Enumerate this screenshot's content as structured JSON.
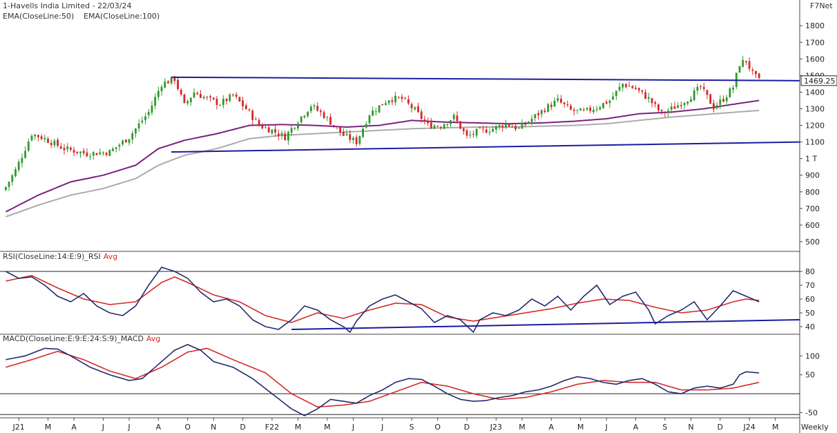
{
  "header": {
    "title": "1-Havells India Limited - 22/03/24",
    "ema50_label": "EMA(CloseLine:50)",
    "ema100_label": "EMA(CloseLine:100)",
    "brand": "F7Net",
    "period_label": "Weekly"
  },
  "colors": {
    "up": "#2e9b2e",
    "down": "#d62828",
    "ema50": "#7b1f7b",
    "ema100": "#aaaaaa",
    "trend": "#1a1aa0",
    "rsi": "#1f2a6b",
    "rsi_avg": "#d62828",
    "macd": "#1f2a6b",
    "macd_avg": "#d62828",
    "ref_line": "#222222"
  },
  "chart_data": [
    {
      "type": "candlestick",
      "name": "price",
      "y_ticks": [
        "1800",
        "1700",
        "1600",
        "1500",
        "1400",
        "1300",
        "1200",
        "1100",
        "1 T",
        "900",
        "800",
        "700",
        "600",
        "500"
      ],
      "y_tick_values": [
        1800,
        1700,
        1600,
        1500,
        1400,
        1300,
        1200,
        1100,
        1000,
        900,
        800,
        700,
        600,
        500
      ],
      "ylim": [
        450,
        1830
      ],
      "last_price_label": "1469.25",
      "last_price": 1469.25,
      "x_labels": [
        "J21",
        "M",
        "A",
        "J",
        "J",
        "A",
        "O",
        "N",
        "D",
        "F22",
        "M",
        "M",
        "J",
        "J",
        "S",
        "O",
        "D",
        "J23",
        "M",
        "A",
        "M",
        "J",
        "A",
        "S",
        "N",
        "D",
        "J24",
        "M"
      ],
      "x_label_weeks": [
        4,
        13,
        21,
        30,
        38,
        47,
        56,
        64,
        73,
        82,
        90,
        99,
        107,
        116,
        125,
        133,
        142,
        151,
        159,
        168,
        177,
        185,
        194,
        203,
        211,
        220,
        229,
        237
      ],
      "week_count": 245,
      "ohlc_keypoints": [
        [
          0,
          830
        ],
        [
          3,
          930
        ],
        [
          8,
          1150
        ],
        [
          12,
          1120
        ],
        [
          18,
          1060
        ],
        [
          25,
          1030
        ],
        [
          32,
          1040
        ],
        [
          38,
          1130
        ],
        [
          44,
          1280
        ],
        [
          48,
          1450
        ],
        [
          52,
          1480
        ],
        [
          55,
          1320
        ],
        [
          58,
          1400
        ],
        [
          62,
          1360
        ],
        [
          66,
          1330
        ],
        [
          70,
          1380
        ],
        [
          74,
          1300
        ],
        [
          78,
          1200
        ],
        [
          82,
          1170
        ],
        [
          86,
          1130
        ],
        [
          90,
          1230
        ],
        [
          94,
          1320
        ],
        [
          98,
          1260
        ],
        [
          104,
          1140
        ],
        [
          108,
          1100
        ],
        [
          112,
          1270
        ],
        [
          118,
          1360
        ],
        [
          122,
          1360
        ],
        [
          126,
          1290
        ],
        [
          130,
          1200
        ],
        [
          134,
          1200
        ],
        [
          138,
          1250
        ],
        [
          142,
          1130
        ],
        [
          145,
          1160
        ],
        [
          150,
          1180
        ],
        [
          154,
          1210
        ],
        [
          158,
          1180
        ],
        [
          162,
          1240
        ],
        [
          166,
          1300
        ],
        [
          170,
          1350
        ],
        [
          174,
          1290
        ],
        [
          178,
          1280
        ],
        [
          182,
          1310
        ],
        [
          186,
          1350
        ],
        [
          190,
          1450
        ],
        [
          194,
          1420
        ],
        [
          198,
          1360
        ],
        [
          202,
          1270
        ],
        [
          206,
          1310
        ],
        [
          210,
          1360
        ],
        [
          214,
          1430
        ],
        [
          218,
          1310
        ],
        [
          221,
          1360
        ],
        [
          224,
          1430
        ],
        [
          226,
          1570
        ],
        [
          228,
          1590
        ],
        [
          230,
          1510
        ],
        [
          232,
          1469
        ]
      ],
      "ema50_keypoints": [
        [
          0,
          680
        ],
        [
          10,
          780
        ],
        [
          20,
          860
        ],
        [
          30,
          900
        ],
        [
          40,
          960
        ],
        [
          47,
          1060
        ],
        [
          55,
          1110
        ],
        [
          65,
          1150
        ],
        [
          75,
          1200
        ],
        [
          85,
          1205
        ],
        [
          95,
          1200
        ],
        [
          105,
          1190
        ],
        [
          115,
          1200
        ],
        [
          125,
          1230
        ],
        [
          135,
          1220
        ],
        [
          145,
          1215
        ],
        [
          155,
          1210
        ],
        [
          165,
          1215
        ],
        [
          175,
          1225
        ],
        [
          185,
          1240
        ],
        [
          195,
          1270
        ],
        [
          205,
          1280
        ],
        [
          215,
          1300
        ],
        [
          225,
          1330
        ],
        [
          232,
          1350
        ]
      ],
      "ema100_keypoints": [
        [
          0,
          650
        ],
        [
          10,
          720
        ],
        [
          20,
          780
        ],
        [
          30,
          820
        ],
        [
          40,
          880
        ],
        [
          47,
          960
        ],
        [
          55,
          1020
        ],
        [
          65,
          1060
        ],
        [
          75,
          1120
        ],
        [
          85,
          1140
        ],
        [
          95,
          1150
        ],
        [
          105,
          1160
        ],
        [
          115,
          1170
        ],
        [
          125,
          1180
        ],
        [
          135,
          1185
        ],
        [
          145,
          1190
        ],
        [
          155,
          1190
        ],
        [
          165,
          1195
        ],
        [
          175,
          1200
        ],
        [
          185,
          1210
        ],
        [
          195,
          1230
        ],
        [
          205,
          1250
        ],
        [
          215,
          1265
        ],
        [
          225,
          1280
        ],
        [
          232,
          1290
        ]
      ],
      "trendlines": [
        {
          "from": [
            51,
            1490
          ],
          "to": [
            245,
            1469
          ]
        },
        {
          "from": [
            51,
            1040
          ],
          "to": [
            245,
            1100
          ]
        }
      ]
    },
    {
      "type": "line",
      "name": "rsi",
      "title": "RSI(CloseLine:14:E:9)_RSI",
      "avg_label": "Avg",
      "y_ticks": [
        "80",
        "70",
        "60",
        "50",
        "40"
      ],
      "y_tick_values": [
        80,
        70,
        60,
        50,
        40
      ],
      "ylim": [
        35,
        86
      ],
      "ref_lines": [
        80
      ],
      "rsi_keypoints": [
        [
          0,
          80
        ],
        [
          4,
          75
        ],
        [
          8,
          76
        ],
        [
          12,
          70
        ],
        [
          16,
          62
        ],
        [
          20,
          58
        ],
        [
          24,
          64
        ],
        [
          28,
          55
        ],
        [
          32,
          50
        ],
        [
          36,
          48
        ],
        [
          40,
          55
        ],
        [
          44,
          70
        ],
        [
          48,
          83
        ],
        [
          52,
          80
        ],
        [
          56,
          75
        ],
        [
          60,
          65
        ],
        [
          64,
          58
        ],
        [
          68,
          60
        ],
        [
          72,
          55
        ],
        [
          76,
          45
        ],
        [
          80,
          40
        ],
        [
          84,
          38
        ],
        [
          88,
          45
        ],
        [
          92,
          55
        ],
        [
          96,
          52
        ],
        [
          100,
          45
        ],
        [
          104,
          40
        ],
        [
          106,
          36
        ],
        [
          108,
          44
        ],
        [
          112,
          55
        ],
        [
          116,
          60
        ],
        [
          120,
          63
        ],
        [
          124,
          58
        ],
        [
          128,
          53
        ],
        [
          132,
          43
        ],
        [
          136,
          48
        ],
        [
          140,
          45
        ],
        [
          144,
          36
        ],
        [
          146,
          45
        ],
        [
          150,
          50
        ],
        [
          154,
          48
        ],
        [
          158,
          52
        ],
        [
          162,
          60
        ],
        [
          166,
          55
        ],
        [
          170,
          62
        ],
        [
          174,
          52
        ],
        [
          178,
          62
        ],
        [
          182,
          70
        ],
        [
          186,
          56
        ],
        [
          190,
          62
        ],
        [
          194,
          65
        ],
        [
          198,
          52
        ],
        [
          200,
          42
        ],
        [
          204,
          48
        ],
        [
          208,
          52
        ],
        [
          212,
          58
        ],
        [
          216,
          45
        ],
        [
          220,
          55
        ],
        [
          224,
          66
        ],
        [
          228,
          62
        ],
        [
          232,
          58
        ]
      ],
      "rsi_avg_keypoints": [
        [
          0,
          73
        ],
        [
          8,
          77
        ],
        [
          16,
          68
        ],
        [
          24,
          60
        ],
        [
          32,
          56
        ],
        [
          40,
          58
        ],
        [
          48,
          72
        ],
        [
          52,
          76
        ],
        [
          56,
          72
        ],
        [
          64,
          63
        ],
        [
          72,
          58
        ],
        [
          80,
          48
        ],
        [
          88,
          43
        ],
        [
          96,
          50
        ],
        [
          104,
          46
        ],
        [
          112,
          52
        ],
        [
          120,
          57
        ],
        [
          128,
          56
        ],
        [
          136,
          47
        ],
        [
          144,
          44
        ],
        [
          152,
          47
        ],
        [
          160,
          50
        ],
        [
          168,
          53
        ],
        [
          176,
          57
        ],
        [
          184,
          60
        ],
        [
          192,
          59
        ],
        [
          200,
          54
        ],
        [
          208,
          50
        ],
        [
          216,
          52
        ],
        [
          224,
          58
        ],
        [
          228,
          60
        ],
        [
          232,
          59
        ]
      ],
      "trendlines": [
        {
          "from": [
            88,
            38
          ],
          "to": [
            245,
            45
          ]
        }
      ]
    },
    {
      "type": "line",
      "name": "macd",
      "title": "MACD(CloseLine:E:9:E:24:S:9)_MACD",
      "avg_label": "Avg",
      "y_ticks": [
        "100",
        "50",
        "-50"
      ],
      "y_tick_values": [
        100,
        50,
        -50
      ],
      "ylim": [
        -60,
        128
      ],
      "ref_lines": [
        0,
        -55
      ],
      "macd_keypoints": [
        [
          0,
          90
        ],
        [
          6,
          100
        ],
        [
          12,
          120
        ],
        [
          16,
          118
        ],
        [
          20,
          100
        ],
        [
          26,
          70
        ],
        [
          32,
          50
        ],
        [
          38,
          35
        ],
        [
          42,
          40
        ],
        [
          48,
          85
        ],
        [
          52,
          115
        ],
        [
          56,
          130
        ],
        [
          60,
          115
        ],
        [
          64,
          85
        ],
        [
          70,
          70
        ],
        [
          76,
          40
        ],
        [
          82,
          0
        ],
        [
          88,
          -40
        ],
        [
          92,
          -58
        ],
        [
          96,
          -40
        ],
        [
          100,
          -15
        ],
        [
          104,
          -20
        ],
        [
          108,
          -25
        ],
        [
          112,
          -5
        ],
        [
          116,
          10
        ],
        [
          120,
          30
        ],
        [
          124,
          40
        ],
        [
          128,
          38
        ],
        [
          132,
          20
        ],
        [
          136,
          0
        ],
        [
          140,
          -15
        ],
        [
          144,
          -20
        ],
        [
          148,
          -18
        ],
        [
          152,
          -10
        ],
        [
          156,
          -5
        ],
        [
          160,
          5
        ],
        [
          164,
          10
        ],
        [
          168,
          20
        ],
        [
          172,
          35
        ],
        [
          176,
          45
        ],
        [
          180,
          40
        ],
        [
          184,
          30
        ],
        [
          188,
          25
        ],
        [
          192,
          35
        ],
        [
          196,
          40
        ],
        [
          200,
          25
        ],
        [
          204,
          5
        ],
        [
          208,
          0
        ],
        [
          212,
          15
        ],
        [
          216,
          20
        ],
        [
          220,
          15
        ],
        [
          224,
          25
        ],
        [
          226,
          50
        ],
        [
          228,
          58
        ],
        [
          232,
          55
        ]
      ],
      "macd_avg_keypoints": [
        [
          0,
          70
        ],
        [
          8,
          90
        ],
        [
          16,
          112
        ],
        [
          24,
          90
        ],
        [
          32,
          60
        ],
        [
          40,
          40
        ],
        [
          48,
          70
        ],
        [
          56,
          110
        ],
        [
          62,
          120
        ],
        [
          70,
          90
        ],
        [
          80,
          55
        ],
        [
          88,
          0
        ],
        [
          96,
          -35
        ],
        [
          104,
          -30
        ],
        [
          112,
          -20
        ],
        [
          120,
          5
        ],
        [
          128,
          30
        ],
        [
          136,
          20
        ],
        [
          144,
          0
        ],
        [
          152,
          -15
        ],
        [
          160,
          -10
        ],
        [
          168,
          5
        ],
        [
          176,
          25
        ],
        [
          184,
          35
        ],
        [
          192,
          30
        ],
        [
          200,
          30
        ],
        [
          208,
          10
        ],
        [
          216,
          10
        ],
        [
          224,
          15
        ],
        [
          232,
          30
        ]
      ]
    }
  ]
}
